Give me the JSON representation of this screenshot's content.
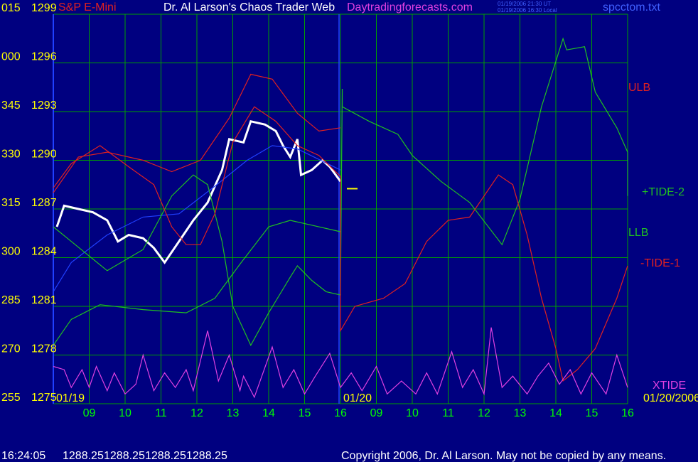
{
  "chart_data": {
    "type": "line",
    "instrument": "S&P E-Mini",
    "title": "Dr. Al Larson's Chaos Trader Web",
    "site": "Daytradingforecasts.com",
    "timestamps": [
      "01/19/2006 21:30 UT",
      "01/19/2006 16:30 Local"
    ],
    "file": "spcctom.txt",
    "xlim": [
      0,
      16
    ],
    "xticks": [
      {
        "value": 1,
        "label": "09"
      },
      {
        "value": 2,
        "label": "10"
      },
      {
        "value": 3,
        "label": "11"
      },
      {
        "value": 4,
        "label": "12"
      },
      {
        "value": 5,
        "label": "13"
      },
      {
        "value": 6,
        "label": "14"
      },
      {
        "value": 7,
        "label": "15"
      },
      {
        "value": 8,
        "label": "16"
      },
      {
        "value": 9,
        "label": "09"
      },
      {
        "value": 10,
        "label": "10"
      },
      {
        "value": 11,
        "label": "11"
      },
      {
        "value": 12,
        "label": "12"
      },
      {
        "value": 13,
        "label": "13"
      },
      {
        "value": 14,
        "label": "14"
      },
      {
        "value": 15,
        "label": "15"
      },
      {
        "value": 16,
        "label": "16"
      }
    ],
    "date_labels": [
      {
        "value": 0,
        "label": "01/19"
      },
      {
        "value": 8,
        "label": "01/20"
      },
      {
        "value": 16,
        "label": "01/20/2006"
      }
    ],
    "ylim": [
      1275,
      1299
    ],
    "yticks": [
      1275,
      1278,
      1281,
      1284,
      1287,
      1290,
      1293,
      1296,
      1299
    ],
    "angle_labels": [
      "255",
      "270",
      "285",
      "300",
      "315",
      "330",
      "345",
      "000",
      "015"
    ],
    "grid": true,
    "series": [
      {
        "color": "#ffffff",
        "x": [
          0.1,
          0.3,
          0.7,
          1.1,
          1.5,
          1.8,
          2.1,
          2.5,
          2.8,
          3.1,
          3.5,
          3.9,
          4.3,
          4.7,
          4.9,
          5.3,
          5.5,
          5.9,
          6.2,
          6.4,
          6.6,
          6.8,
          6.9,
          7.2,
          7.5,
          7.7,
          8.0
        ],
        "values": [
          1285.9,
          1287.2,
          1287.0,
          1286.8,
          1286.3,
          1285.0,
          1285.4,
          1285.2,
          1284.6,
          1283.7,
          1285.0,
          1286.3,
          1287.4,
          1289.4,
          1291.3,
          1291.1,
          1292.4,
          1292.2,
          1291.8,
          1290.9,
          1290.2,
          1291.3,
          1289.1,
          1289.4,
          1290.0,
          1289.6,
          1288.7
        ]
      },
      {
        "color": "#2040ff",
        "x": [
          0,
          0.5,
          1.5,
          2.5,
          3.5,
          4.5,
          5.4,
          6.1,
          6.8,
          8.0
        ],
        "values": [
          1281.9,
          1283.7,
          1285.4,
          1286.5,
          1286.7,
          1288.4,
          1290.0,
          1290.9,
          1290.7,
          1289.4
        ]
      },
      {
        "name": "ULB",
        "color": "#e02020",
        "x": [
          0,
          0.7,
          1.5,
          2.5,
          3.3,
          4.1,
          4.9,
          5.5,
          6.1,
          6.8,
          7.4,
          8.0
        ],
        "values": [
          1288.0,
          1290.2,
          1290.5,
          1290.0,
          1289.3,
          1290.0,
          1292.6,
          1295.3,
          1295.0,
          1292.9,
          1291.8,
          1292.0
        ]
      },
      {
        "name": "+TIDE-2",
        "color": "#20c020",
        "x": [
          0,
          0.5,
          1.5,
          2.5,
          3.3,
          3.9,
          4.3,
          4.7,
          5.0,
          5.5,
          6.0,
          6.6,
          6.8,
          7.2,
          7.6,
          8.0,
          8.05,
          8.05,
          8.8,
          9.6,
          10.0,
          10.8,
          11.6,
          12.5,
          13.0,
          13.6,
          14.2,
          14.3,
          14.8,
          15.1,
          15.7,
          16.0,
          16.0
        ],
        "values": [
          1285.9,
          1285.0,
          1283.2,
          1284.5,
          1287.8,
          1289.1,
          1288.5,
          1285.0,
          1281.0,
          1278.6,
          1280.6,
          1282.8,
          1283.5,
          1282.6,
          1281.9,
          1281.7,
          1294.4,
          1293.3,
          1292.4,
          1291.6,
          1290.3,
          1288.7,
          1287.4,
          1284.8,
          1287.6,
          1293.3,
          1297.5,
          1296.8,
          1297.0,
          1294.2,
          1292.0,
          1290.5,
          1287.8
        ]
      },
      {
        "name": "LLB",
        "color": "#20c020",
        "x": [
          0,
          0.5,
          1.3,
          2.5,
          3.7,
          4.5,
          5.2,
          6.0,
          6.6,
          7.2,
          8.0
        ],
        "values": [
          1278.6,
          1280.2,
          1281.1,
          1280.8,
          1280.6,
          1281.5,
          1283.6,
          1285.9,
          1286.3,
          1286.0,
          1285.6
        ]
      },
      {
        "name": "-TIDE-1",
        "color": "#e02020",
        "x": [
          0,
          0.5,
          1.3,
          2.1,
          2.8,
          3.3,
          3.7,
          4.1,
          4.5,
          5.0,
          5.6,
          6.2,
          6.8,
          7.4,
          8.0,
          8.0,
          8.4,
          9.2,
          9.8,
          10.4,
          11.0,
          11.6,
          12.4,
          12.8,
          13.2,
          13.6,
          14.0,
          14.2,
          14.6,
          15.1,
          15.7,
          16.0
        ],
        "values": [
          1288.3,
          1289.8,
          1290.9,
          1289.6,
          1288.5,
          1285.9,
          1284.8,
          1284.8,
          1286.7,
          1291.1,
          1293.3,
          1292.4,
          1290.9,
          1290.3,
          1289.0,
          1279.5,
          1281.0,
          1281.5,
          1282.4,
          1285.0,
          1286.3,
          1286.5,
          1289.1,
          1288.5,
          1285.4,
          1281.5,
          1278.4,
          1276.4,
          1277.1,
          1278.4,
          1281.5,
          1283.5
        ]
      },
      {
        "name": "XTIDE",
        "color": "#e040e0",
        "x": [
          0,
          0.3,
          0.5,
          0.8,
          1.0,
          1.2,
          1.5,
          1.7,
          2.0,
          2.3,
          2.5,
          2.8,
          3.1,
          3.4,
          3.7,
          3.9,
          4.3,
          4.6,
          4.9,
          5.2,
          5.3,
          5.6,
          6.1,
          6.4,
          6.7,
          7.0,
          7.3,
          7.7,
          8.0,
          8.3,
          8.6,
          9.0,
          9.3,
          9.7,
          10.1,
          10.4,
          10.7,
          11.1,
          11.4,
          11.7,
          12.0,
          12.2,
          12.5,
          12.8,
          13.2,
          13.5,
          13.8,
          14.1,
          14.4,
          14.7,
          15.0,
          15.4,
          15.7,
          16.0
        ],
        "values": [
          1277.3,
          1277.1,
          1276.0,
          1277.1,
          1276.0,
          1277.3,
          1275.8,
          1276.9,
          1275.6,
          1276.2,
          1278.0,
          1275.8,
          1276.9,
          1276.0,
          1277.1,
          1275.8,
          1279.5,
          1276.4,
          1278.0,
          1275.8,
          1276.7,
          1275.4,
          1278.5,
          1276.0,
          1277.1,
          1275.6,
          1276.7,
          1278.1,
          1276.0,
          1276.9,
          1275.8,
          1277.3,
          1275.6,
          1276.4,
          1275.6,
          1276.9,
          1275.6,
          1278.2,
          1276.0,
          1277.1,
          1275.6,
          1279.7,
          1276.0,
          1276.7,
          1275.6,
          1276.7,
          1277.5,
          1276.2,
          1277.1,
          1275.6,
          1276.9,
          1275.6,
          1278.0,
          1276.0
        ]
      }
    ],
    "status_time": "16:24:05",
    "ohlc": [
      1288.25,
      1288.25,
      1288.25,
      1288.25
    ],
    "copyright": "Copyright 2006, Dr. Al Larson. May not be copied by any means."
  }
}
